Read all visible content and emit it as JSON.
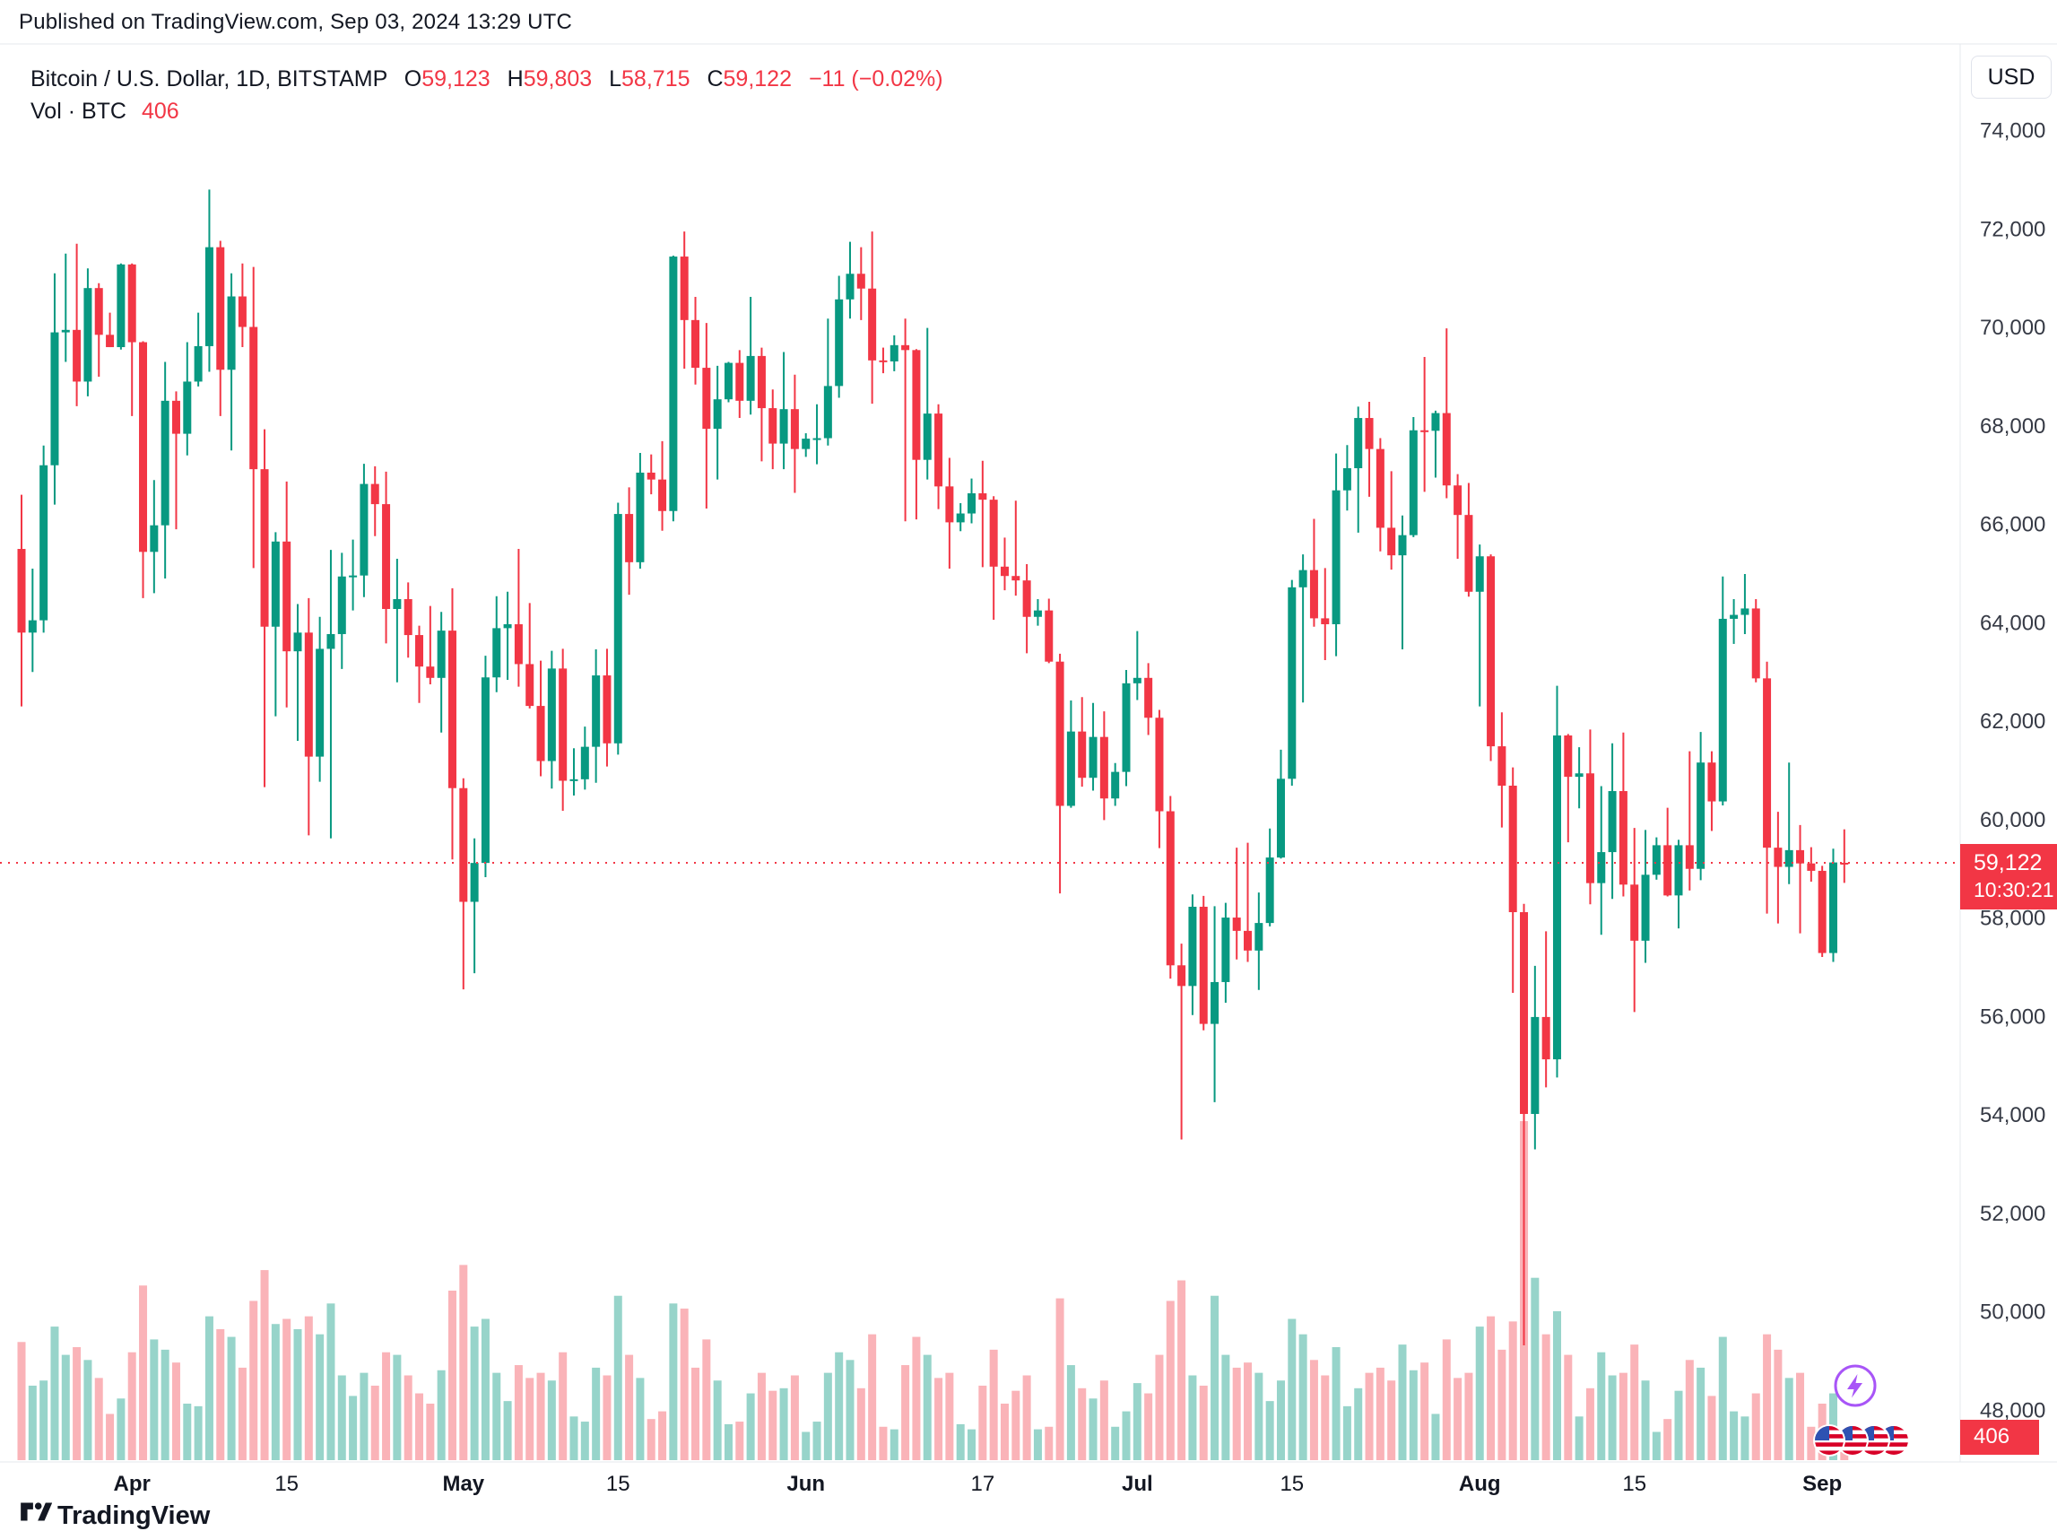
{
  "page": {
    "published_line": "Published on TradingView.com, Sep 03, 2024 13:29 UTC"
  },
  "header": {
    "symbol_title": "Bitcoin / U.S. Dollar, 1D, BITSTAMP",
    "ohlc": {
      "o_label": "O",
      "o": "59,123",
      "h_label": "H",
      "h": "59,803",
      "l_label": "L",
      "l": "58,715",
      "c_label": "C",
      "c": "59,122",
      "change": "−11 (−0.02%)"
    },
    "volume_label": "Vol · BTC",
    "volume_value": "406"
  },
  "price_axis": {
    "currency_button": "USD",
    "last_price_label": "59,122",
    "countdown": "10:30:21",
    "volume_badge": "406"
  },
  "footer": {
    "brand": "TradingView"
  },
  "colors": {
    "up": "#089981",
    "down": "#F23645",
    "vol_up": "rgba(8,153,129,0.42)",
    "vol_down": "rgba(242,54,69,0.38)",
    "last_price_line": "#F23645",
    "axis_text": "#363a45",
    "time_text": "#131722",
    "separator": "#e6e8ee",
    "boost": "#a855f7"
  },
  "chart_data": {
    "type": "candlestick",
    "symbol": "Bitcoin / U.S. Dollar",
    "exchange": "BITSTAMP",
    "interval": "1D",
    "currency": "USD",
    "last_price": 59122,
    "last_volume": 406,
    "ylim": [
      46950,
      75450
    ],
    "price_ticks": [
      74000,
      72000,
      70000,
      68000,
      66000,
      64000,
      62000,
      60000,
      58000,
      56000,
      54000,
      52000,
      50000,
      48000
    ],
    "time_ticks": [
      {
        "label": "Apr",
        "index": 10
      },
      {
        "label": "15",
        "index": 24
      },
      {
        "label": "May",
        "index": 40
      },
      {
        "label": "15",
        "index": 54
      },
      {
        "label": "Jun",
        "index": 71
      },
      {
        "label": "17",
        "index": 87
      },
      {
        "label": "Jul",
        "index": 101
      },
      {
        "label": "15",
        "index": 115
      },
      {
        "label": "Aug",
        "index": 132
      },
      {
        "label": "15",
        "index": 146
      },
      {
        "label": "Sep",
        "index": 163
      }
    ],
    "start_date": "2024-03-22",
    "ohlcv": [
      [
        65500,
        66600,
        62300,
        63800,
        4600
      ],
      [
        63800,
        65100,
        63000,
        64050,
        2900
      ],
      [
        64050,
        67600,
        63800,
        67200,
        3100
      ],
      [
        67200,
        71100,
        66400,
        69900,
        5200
      ],
      [
        69900,
        71500,
        69300,
        69950,
        4100
      ],
      [
        69950,
        71700,
        68400,
        68900,
        4400
      ],
      [
        68900,
        71200,
        68600,
        70800,
        3900
      ],
      [
        70800,
        70900,
        69000,
        69850,
        3200
      ],
      [
        69850,
        70300,
        69600,
        69600,
        1800
      ],
      [
        69600,
        71300,
        69550,
        71280,
        2400
      ],
      [
        71280,
        71300,
        68200,
        69700,
        4200
      ],
      [
        69700,
        69720,
        64500,
        65440,
        6800
      ],
      [
        65440,
        66900,
        64600,
        65980,
        4700
      ],
      [
        65980,
        69300,
        64900,
        68510,
        4300
      ],
      [
        68510,
        68700,
        65900,
        67840,
        3800
      ],
      [
        67840,
        69700,
        67400,
        68900,
        2200
      ],
      [
        68900,
        70300,
        68800,
        69620,
        2100
      ],
      [
        69620,
        72800,
        69100,
        71630,
        5600
      ],
      [
        71630,
        71760,
        68200,
        69140,
        5100
      ],
      [
        69140,
        71100,
        67500,
        70630,
        4800
      ],
      [
        70630,
        71300,
        69600,
        70010,
        3600
      ],
      [
        70010,
        71230,
        65110,
        67120,
        6200
      ],
      [
        67120,
        67930,
        60660,
        63920,
        7400
      ],
      [
        63920,
        65840,
        62100,
        65650,
        5300
      ],
      [
        65650,
        66870,
        62280,
        63420,
        5500
      ],
      [
        63420,
        64380,
        61600,
        63800,
        5100
      ],
      [
        63800,
        64500,
        59680,
        61280,
        5600
      ],
      [
        61280,
        64120,
        60770,
        63470,
        4900
      ],
      [
        63470,
        65480,
        59620,
        63770,
        6100
      ],
      [
        63770,
        65420,
        63060,
        64940,
        3300
      ],
      [
        64940,
        65690,
        64250,
        64960,
        2500
      ],
      [
        64960,
        67230,
        64520,
        66820,
        3400
      ],
      [
        66820,
        67180,
        65760,
        66410,
        2900
      ],
      [
        66410,
        67070,
        63580,
        64280,
        4200
      ],
      [
        64280,
        65300,
        62790,
        64480,
        4100
      ],
      [
        64480,
        64820,
        63290,
        63750,
        3300
      ],
      [
        63750,
        63940,
        62370,
        63110,
        2600
      ],
      [
        63110,
        64340,
        62750,
        62880,
        2200
      ],
      [
        62880,
        64220,
        61770,
        63840,
        3500
      ],
      [
        63840,
        64700,
        59190,
        60640,
        6600
      ],
      [
        60640,
        60840,
        56550,
        58330,
        7600
      ],
      [
        58330,
        59620,
        56880,
        59120,
        5200
      ],
      [
        59120,
        63330,
        58830,
        62890,
        5500
      ],
      [
        62890,
        64540,
        62590,
        63890,
        3400
      ],
      [
        63890,
        64630,
        62840,
        63970,
        2300
      ],
      [
        63970,
        65500,
        62700,
        63160,
        3700
      ],
      [
        63160,
        64400,
        62260,
        62310,
        3200
      ],
      [
        62310,
        63230,
        60880,
        61190,
        3400
      ],
      [
        61190,
        63430,
        60630,
        63070,
        3100
      ],
      [
        63070,
        63470,
        60180,
        60790,
        4200
      ],
      [
        60790,
        61450,
        60490,
        60820,
        1700
      ],
      [
        60820,
        61890,
        60610,
        61480,
        1500
      ],
      [
        61480,
        63460,
        60750,
        62930,
        3600
      ],
      [
        62930,
        63470,
        61080,
        61550,
        3300
      ],
      [
        61550,
        66440,
        61320,
        66210,
        6400
      ],
      [
        66210,
        66750,
        64570,
        65230,
        4100
      ],
      [
        65230,
        67450,
        65100,
        67050,
        3200
      ],
      [
        67050,
        67420,
        66610,
        66910,
        1600
      ],
      [
        66910,
        67690,
        65870,
        66270,
        1900
      ],
      [
        66270,
        71460,
        66060,
        71440,
        6100
      ],
      [
        71440,
        71950,
        69160,
        70150,
        5900
      ],
      [
        70150,
        70620,
        68840,
        69180,
        3600
      ],
      [
        69180,
        70090,
        66320,
        67940,
        4700
      ],
      [
        67940,
        69220,
        66910,
        68540,
        3100
      ],
      [
        68540,
        69300,
        68480,
        69280,
        1400
      ],
      [
        69280,
        69540,
        68160,
        68510,
        1500
      ],
      [
        68510,
        70620,
        68230,
        69420,
        2600
      ],
      [
        69420,
        69590,
        67280,
        68360,
        3400
      ],
      [
        68360,
        68740,
        67120,
        67640,
        2700
      ],
      [
        67640,
        69500,
        67120,
        68340,
        2800
      ],
      [
        68340,
        69040,
        66640,
        67530,
        3300
      ],
      [
        67530,
        67850,
        67370,
        67740,
        1100
      ],
      [
        67740,
        68440,
        67220,
        67750,
        1500
      ],
      [
        67750,
        70180,
        67600,
        68810,
        3400
      ],
      [
        68810,
        71050,
        68570,
        70570,
        4200
      ],
      [
        70570,
        71740,
        70180,
        71090,
        3900
      ],
      [
        71090,
        71630,
        70150,
        70790,
        2800
      ],
      [
        70790,
        71950,
        68450,
        69330,
        4900
      ],
      [
        69330,
        69590,
        69070,
        69310,
        1300
      ],
      [
        69310,
        69840,
        69110,
        69640,
        1200
      ],
      [
        69640,
        70180,
        66060,
        69540,
        3700
      ],
      [
        69540,
        69560,
        66100,
        67310,
        4800
      ],
      [
        67310,
        69990,
        66910,
        68250,
        4100
      ],
      [
        68250,
        68440,
        66310,
        66770,
        3200
      ],
      [
        66770,
        67350,
        65100,
        66040,
        3400
      ],
      [
        66040,
        66430,
        65860,
        66220,
        1400
      ],
      [
        66220,
        66930,
        66020,
        66630,
        1200
      ],
      [
        66630,
        67290,
        65130,
        66500,
        2900
      ],
      [
        66500,
        66570,
        64060,
        65140,
        4300
      ],
      [
        65140,
        65730,
        64660,
        64950,
        2200
      ],
      [
        64950,
        66480,
        64550,
        64860,
        2700
      ],
      [
        64860,
        65190,
        63380,
        64120,
        3300
      ],
      [
        64120,
        64480,
        63940,
        64250,
        1200
      ],
      [
        64250,
        64490,
        63180,
        63210,
        1300
      ],
      [
        63210,
        63370,
        58500,
        60280,
        6300
      ],
      [
        60280,
        62420,
        60240,
        61790,
        3700
      ],
      [
        61790,
        62490,
        60670,
        60850,
        2800
      ],
      [
        60850,
        62370,
        60590,
        61680,
        2400
      ],
      [
        61680,
        62200,
        59990,
        60430,
        3100
      ],
      [
        60430,
        61150,
        60280,
        60970,
        1300
      ],
      [
        60970,
        63040,
        60680,
        62770,
        1900
      ],
      [
        62770,
        63830,
        62430,
        62880,
        3000
      ],
      [
        62880,
        63180,
        61720,
        62070,
        2600
      ],
      [
        62070,
        62230,
        59420,
        60170,
        4100
      ],
      [
        60170,
        60480,
        56770,
        57040,
        6200
      ],
      [
        57040,
        57480,
        53500,
        56620,
        7000
      ],
      [
        56620,
        58480,
        56030,
        58230,
        3300
      ],
      [
        58230,
        58450,
        55720,
        55850,
        2900
      ],
      [
        55850,
        58240,
        54260,
        56700,
        6400
      ],
      [
        56700,
        58310,
        56280,
        58010,
        4100
      ],
      [
        58010,
        59430,
        57160,
        57740,
        3600
      ],
      [
        57740,
        59530,
        57110,
        57340,
        3800
      ],
      [
        57340,
        58520,
        56540,
        57900,
        3400
      ],
      [
        57900,
        59820,
        57830,
        59230,
        2300
      ],
      [
        59230,
        61420,
        59210,
        60830,
        3100
      ],
      [
        60830,
        64870,
        60690,
        64720,
        5500
      ],
      [
        64720,
        65390,
        62380,
        65070,
        4900
      ],
      [
        65070,
        66110,
        63920,
        64090,
        3900
      ],
      [
        64090,
        65110,
        63240,
        63970,
        3300
      ],
      [
        63970,
        67440,
        63320,
        66690,
        4400
      ],
      [
        66690,
        67610,
        66280,
        67140,
        2100
      ],
      [
        67140,
        68390,
        65830,
        68160,
        2800
      ],
      [
        68160,
        68490,
        66560,
        67530,
        3400
      ],
      [
        67530,
        67750,
        65450,
        65930,
        3600
      ],
      [
        65930,
        67080,
        65080,
        65370,
        3100
      ],
      [
        65370,
        66180,
        63460,
        65780,
        4500
      ],
      [
        65780,
        68180,
        65740,
        67910,
        3500
      ],
      [
        67910,
        69400,
        66660,
        67900,
        3800
      ],
      [
        67900,
        68310,
        66950,
        68260,
        1800
      ],
      [
        68260,
        69980,
        66530,
        66790,
        4700
      ],
      [
        66790,
        67020,
        65300,
        66190,
        3200
      ],
      [
        66190,
        66840,
        64530,
        64630,
        3400
      ],
      [
        64630,
        65590,
        62300,
        65350,
        5200
      ],
      [
        65350,
        65390,
        61190,
        61490,
        5600
      ],
      [
        61490,
        62180,
        59840,
        60690,
        4300
      ],
      [
        60690,
        61060,
        56480,
        58120,
        5400
      ],
      [
        58120,
        58290,
        49320,
        54020,
        13200
      ],
      [
        54020,
        57030,
        53300,
        55990,
        7100
      ],
      [
        55990,
        57730,
        54560,
        55130,
        4900
      ],
      [
        55130,
        62720,
        54760,
        61710,
        5800
      ],
      [
        61710,
        61740,
        59540,
        60870,
        4100
      ],
      [
        60870,
        61470,
        60230,
        60940,
        1700
      ],
      [
        60940,
        61830,
        58280,
        58710,
        2800
      ],
      [
        58710,
        60680,
        57660,
        59340,
        4200
      ],
      [
        59340,
        61550,
        58390,
        60580,
        3300
      ],
      [
        60580,
        61770,
        58440,
        58680,
        3400
      ],
      [
        58680,
        59830,
        56090,
        57540,
        4500
      ],
      [
        57540,
        59790,
        57090,
        58880,
        3100
      ],
      [
        58880,
        59640,
        58780,
        59480,
        1100
      ],
      [
        59480,
        60240,
        58440,
        58460,
        1600
      ],
      [
        58460,
        59590,
        57790,
        59480,
        2700
      ],
      [
        59480,
        61390,
        58560,
        59000,
        3900
      ],
      [
        59000,
        61780,
        58770,
        61160,
        3600
      ],
      [
        61160,
        61390,
        59770,
        60370,
        2500
      ],
      [
        60370,
        64940,
        60290,
        64080,
        4800
      ],
      [
        64080,
        64480,
        63570,
        64160,
        1900
      ],
      [
        64160,
        64990,
        63770,
        64290,
        1700
      ],
      [
        64290,
        64480,
        62790,
        62870,
        2600
      ],
      [
        62870,
        63210,
        58090,
        59430,
        4900
      ],
      [
        59430,
        60160,
        57890,
        59040,
        4300
      ],
      [
        59040,
        61160,
        58690,
        59380,
        3200
      ],
      [
        59380,
        59890,
        57690,
        59110,
        3400
      ],
      [
        59110,
        59440,
        58740,
        58960,
        1300
      ],
      [
        58960,
        59060,
        57210,
        57290,
        2200
      ],
      [
        57290,
        59410,
        57110,
        59130,
        2600
      ],
      [
        59123,
        59803,
        58715,
        59122,
        406
      ]
    ]
  }
}
